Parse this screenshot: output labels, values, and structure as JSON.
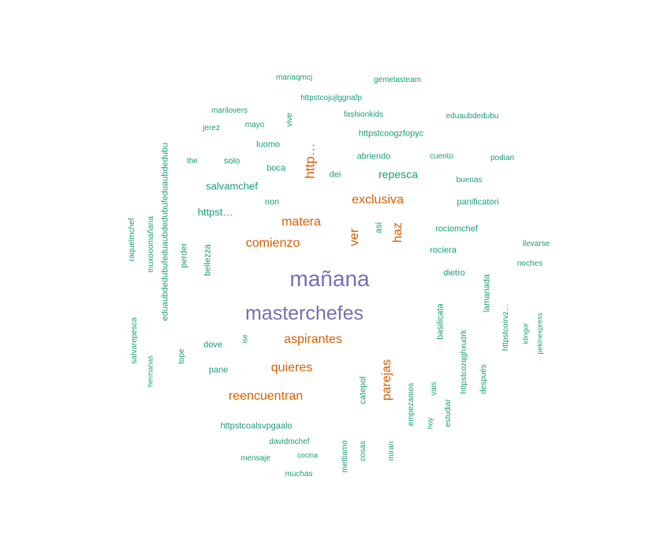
{
  "colors": {
    "background": "#ffffff",
    "tier_large": "#7570b3",
    "tier_medium": "#d95f02",
    "tier_small": "#1b9e77"
  },
  "words": [
    {
      "text": "mañana",
      "tier": "large"
    },
    {
      "text": "masterchefes",
      "tier": "large"
    },
    {
      "text": "http…",
      "tier": "medium"
    },
    {
      "text": "exclusiva",
      "tier": "medium"
    },
    {
      "text": "matera",
      "tier": "medium"
    },
    {
      "text": "comienzo",
      "tier": "medium"
    },
    {
      "text": "ver",
      "tier": "medium"
    },
    {
      "text": "haz",
      "tier": "medium"
    },
    {
      "text": "aspirantes",
      "tier": "medium"
    },
    {
      "text": "quieres",
      "tier": "medium"
    },
    {
      "text": "reencuentran",
      "tier": "medium"
    },
    {
      "text": "parejas",
      "tier": "medium"
    },
    {
      "text": "mariaqmcj",
      "tier": "small"
    },
    {
      "text": "gemelasteam",
      "tier": "small"
    },
    {
      "text": "httpstcojujlggnafp",
      "tier": "small"
    },
    {
      "text": "marilovers",
      "tier": "small"
    },
    {
      "text": "fashionkids",
      "tier": "small"
    },
    {
      "text": "eduaubdedubu",
      "tier": "small"
    },
    {
      "text": "jerez",
      "tier": "small"
    },
    {
      "text": "mayo",
      "tier": "small"
    },
    {
      "text": "vive",
      "tier": "small"
    },
    {
      "text": "httpstcoogzfopyc",
      "tier": "small"
    },
    {
      "text": "luomo",
      "tier": "small"
    },
    {
      "text": "the",
      "tier": "small"
    },
    {
      "text": "solo",
      "tier": "small"
    },
    {
      "text": "abriendo",
      "tier": "small"
    },
    {
      "text": "cuento",
      "tier": "small"
    },
    {
      "text": "podian",
      "tier": "small"
    },
    {
      "text": "boca",
      "tier": "small"
    },
    {
      "text": "dei",
      "tier": "small"
    },
    {
      "text": "repesca",
      "tier": "small"
    },
    {
      "text": "buenas",
      "tier": "small"
    },
    {
      "text": "salvamchef",
      "tier": "small"
    },
    {
      "text": "non",
      "tier": "small"
    },
    {
      "text": "panificatori",
      "tier": "small"
    },
    {
      "text": "httpst…",
      "tier": "small"
    },
    {
      "text": "eduaubdedubufeduaubdedubufeduaubdedubu",
      "tier": "small"
    },
    {
      "text": "raquelmchef",
      "tier": "small"
    },
    {
      "text": "muxooomañana",
      "tier": "small"
    },
    {
      "text": "asi",
      "tier": "small"
    },
    {
      "text": "rociomchef",
      "tier": "small"
    },
    {
      "text": "perder",
      "tier": "small"
    },
    {
      "text": "bellezza",
      "tier": "small"
    },
    {
      "text": "llevarse",
      "tier": "small"
    },
    {
      "text": "rociera",
      "tier": "small"
    },
    {
      "text": "noches",
      "tier": "small"
    },
    {
      "text": "dietro",
      "tier": "small"
    },
    {
      "text": "lamanada",
      "tier": "small"
    },
    {
      "text": "basilicata",
      "tier": "small"
    },
    {
      "text": "httpstcoirvz…",
      "tier": "small"
    },
    {
      "text": "pekinexpress",
      "tier": "small"
    },
    {
      "text": "klingor",
      "tier": "small"
    },
    {
      "text": "salvarepesca",
      "tier": "small"
    },
    {
      "text": "ise",
      "tier": "small"
    },
    {
      "text": "dove",
      "tier": "small"
    },
    {
      "text": "httpstcozqghxudrk",
      "tier": "small"
    },
    {
      "text": "tope",
      "tier": "small"
    },
    {
      "text": "hermanas",
      "tier": "small"
    },
    {
      "text": "pane",
      "tier": "small"
    },
    {
      "text": "catepol",
      "tier": "small"
    },
    {
      "text": "después",
      "tier": "small"
    },
    {
      "text": "vais",
      "tier": "small"
    },
    {
      "text": "empezamos",
      "tier": "small"
    },
    {
      "text": "httpstcoalsvpgaalo",
      "tier": "small"
    },
    {
      "text": "hoy",
      "tier": "small"
    },
    {
      "text": "estudiar",
      "tier": "small"
    },
    {
      "text": "davidmchef",
      "tier": "small"
    },
    {
      "text": "mettiamo",
      "tier": "small"
    },
    {
      "text": "cosas",
      "tier": "small"
    },
    {
      "text": "miran",
      "tier": "small"
    },
    {
      "text": "mensaje",
      "tier": "small"
    },
    {
      "text": "cocina",
      "tier": "small"
    },
    {
      "text": "muchas",
      "tier": "small"
    }
  ]
}
